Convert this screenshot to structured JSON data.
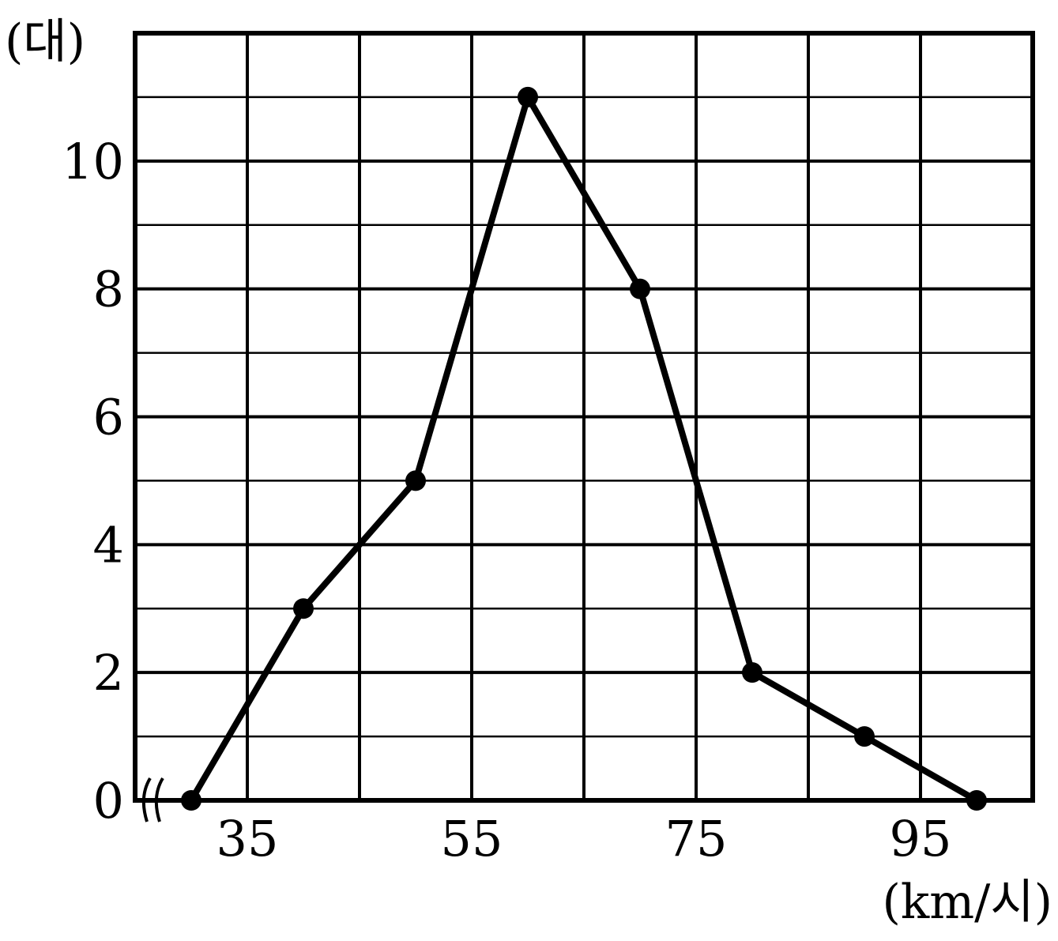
{
  "chart_data": {
    "type": "line",
    "title": "",
    "xlabel": "",
    "ylabel": "",
    "x_unit_label": "(km/시)",
    "y_unit_label": "(대)",
    "x": [
      30,
      40,
      50,
      60,
      70,
      80,
      90,
      100
    ],
    "series": [
      {
        "values": [
          0,
          3,
          5,
          11,
          8,
          2,
          1,
          0
        ]
      }
    ],
    "xlim": [
      25,
      105
    ],
    "ylim": [
      0,
      12
    ],
    "x_ticks": [
      "35",
      "55",
      "75",
      "95"
    ],
    "x_tick_values": [
      35,
      55,
      75,
      95
    ],
    "y_ticks": [
      "0",
      "2",
      "4",
      "6",
      "8",
      "10"
    ],
    "y_tick_values": [
      0,
      2,
      4,
      6,
      8,
      10
    ],
    "x_grid_step": 10,
    "y_grid_step": 1,
    "grid": true,
    "axis_break": true,
    "color": "#000000"
  }
}
